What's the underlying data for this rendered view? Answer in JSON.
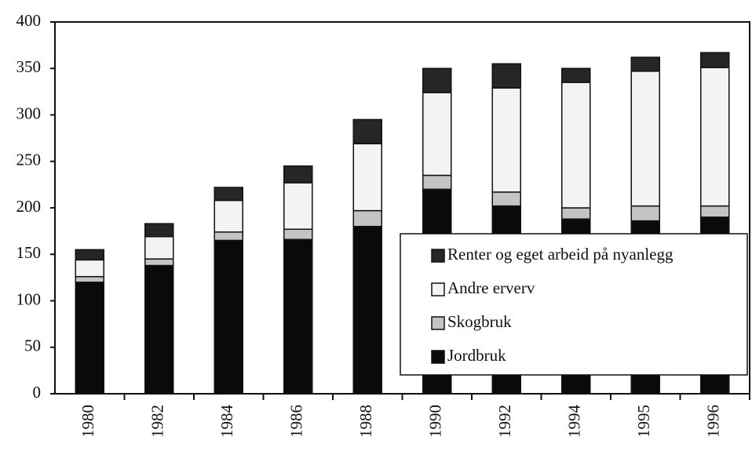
{
  "chart_data": {
    "type": "bar",
    "stacked": true,
    "categories": [
      "1980",
      "1982",
      "1984",
      "1986",
      "1988",
      "1990",
      "1992",
      "1994",
      "1995",
      "1996"
    ],
    "series": [
      {
        "name": "Jordbruk",
        "color": "#0a0a0a",
        "values": [
          120,
          138,
          165,
          166,
          180,
          220,
          202,
          188,
          186,
          190
        ]
      },
      {
        "name": "Skogbruk",
        "color": "#c4c4c4",
        "values": [
          6,
          7,
          9,
          11,
          17,
          15,
          15,
          12,
          16,
          12
        ]
      },
      {
        "name": "Andre erverv",
        "color": "#f3f3f3",
        "values": [
          18,
          24,
          34,
          50,
          72,
          89,
          112,
          135,
          145,
          149
        ]
      },
      {
        "name": "Renter og eget arbeid på nyanlegg",
        "color": "#262626",
        "values": [
          11,
          14,
          14,
          18,
          26,
          26,
          26,
          15,
          15,
          16
        ]
      }
    ],
    "ylim": [
      0,
      400
    ],
    "yticks": [
      0,
      50,
      100,
      150,
      200,
      250,
      300,
      350,
      400
    ],
    "grid": false,
    "legend": "lower right"
  }
}
